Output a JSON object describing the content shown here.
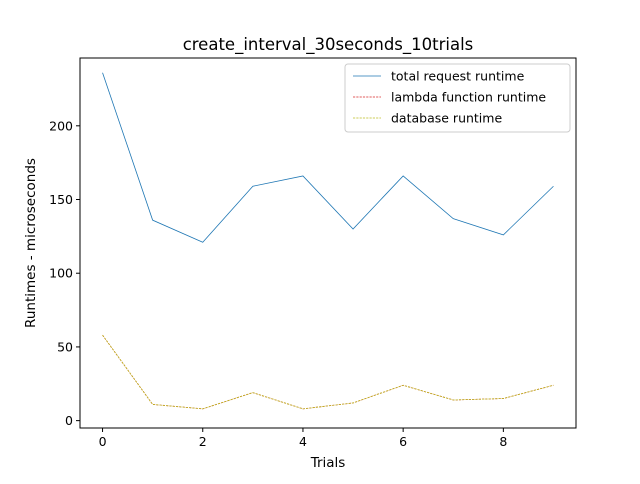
{
  "chart_data": {
    "type": "line",
    "title": "create_interval_30seconds_10trials",
    "xlabel": "Trials",
    "ylabel": "Runtimes - microseconds",
    "x": [
      0,
      1,
      2,
      3,
      4,
      5,
      6,
      7,
      8,
      9
    ],
    "xlim": [
      -0.45,
      9.45
    ],
    "ylim": [
      -5,
      246
    ],
    "xticks": [
      0,
      2,
      4,
      6,
      8
    ],
    "yticks": [
      0,
      50,
      100,
      150,
      200
    ],
    "grid": false,
    "legend_position": "top-right",
    "series": [
      {
        "name": "total request runtime",
        "color": "#1f77b4",
        "style": "solid",
        "values": [
          236,
          136,
          121,
          159,
          166,
          130,
          166,
          137,
          126,
          159
        ]
      },
      {
        "name": "lambda function runtime",
        "color": "#d62728",
        "style": "dashed",
        "values": [
          58,
          11,
          8,
          19,
          8,
          12,
          24,
          14,
          15,
          24
        ]
      },
      {
        "name": "database runtime",
        "color": "#bcbd22",
        "style": "dashed",
        "values": [
          58,
          11,
          8,
          19,
          8,
          12,
          24,
          14,
          15,
          24
        ]
      }
    ]
  }
}
